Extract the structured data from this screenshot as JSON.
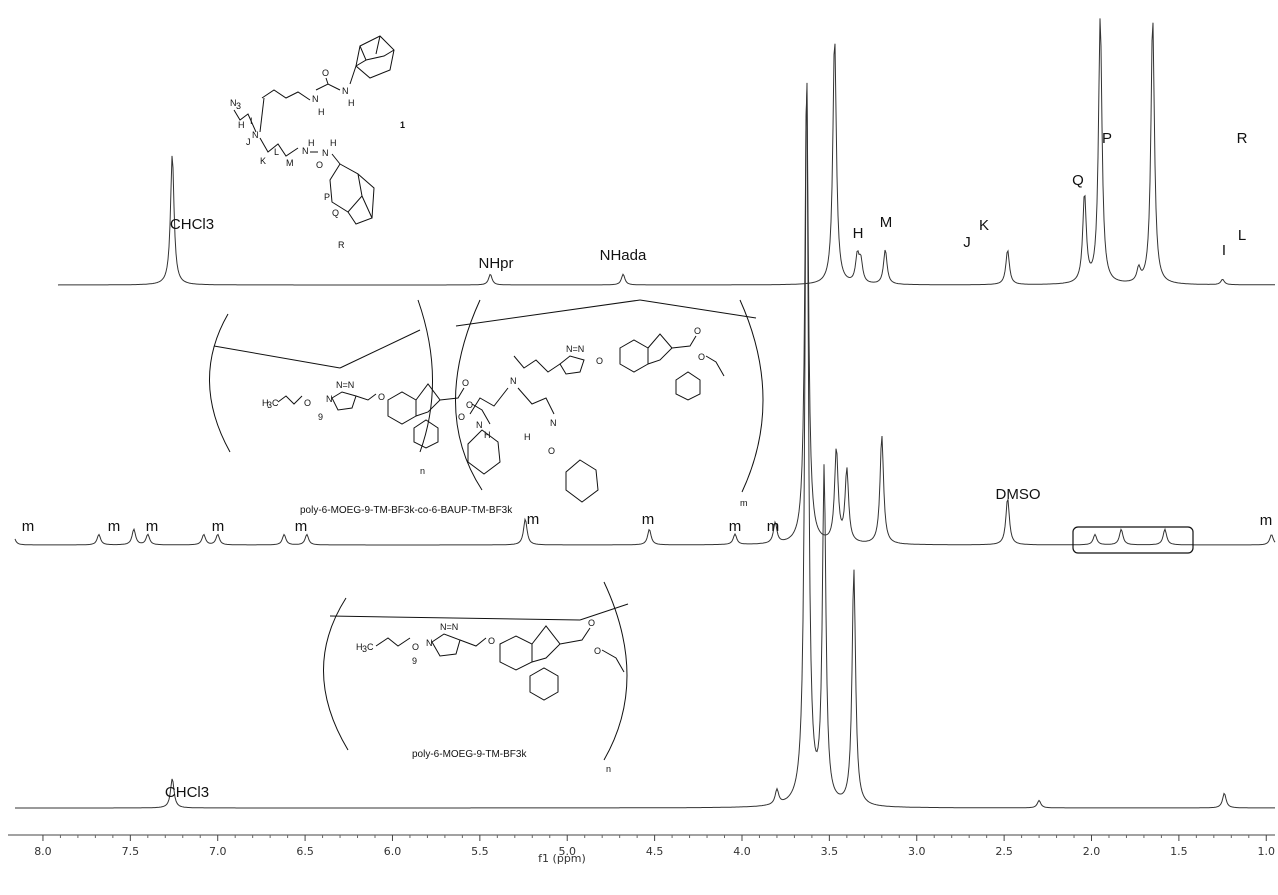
{
  "chart_data": {
    "type": "line",
    "xlabel": "f1 (ppm)",
    "xlim": [
      8.2,
      0.95
    ],
    "x_ticks": [
      "8.0",
      "7.5",
      "7.0",
      "6.5",
      "6.0",
      "5.5",
      "5.0",
      "4.5",
      "4.0",
      "3.5",
      "3.0",
      "2.5",
      "2.0",
      "1.5",
      "1.0"
    ],
    "grid": false,
    "series": [
      {
        "name": "1",
        "peaks": [
          {
            "ppm": 7.26,
            "height": 0.49
          },
          {
            "ppm": 5.44,
            "height": 0.04
          },
          {
            "ppm": 4.68,
            "height": 0.04
          },
          {
            "ppm": 3.47,
            "height": 0.93
          },
          {
            "ppm": 3.34,
            "height": 0.1
          },
          {
            "ppm": 3.32,
            "height": 0.08
          },
          {
            "ppm": 3.18,
            "height": 0.13
          },
          {
            "ppm": 2.48,
            "height": 0.13
          },
          {
            "ppm": 2.04,
            "height": 0.33
          },
          {
            "ppm": 1.95,
            "height": 1.0
          },
          {
            "ppm": 1.73,
            "height": 0.05
          },
          {
            "ppm": 1.65,
            "height": 1.0
          },
          {
            "ppm": 1.25,
            "height": 0.02
          }
        ]
      },
      {
        "name": "poly-6-MOEG-9-TM-BF3k-co-6-BAUP-TM-BF3k",
        "peaks": [
          {
            "ppm": 8.17,
            "height": 0.02
          },
          {
            "ppm": 7.68,
            "height": 0.02
          },
          {
            "ppm": 7.48,
            "height": 0.03
          },
          {
            "ppm": 7.4,
            "height": 0.02
          },
          {
            "ppm": 7.08,
            "height": 0.02
          },
          {
            "ppm": 7.0,
            "height": 0.02
          },
          {
            "ppm": 6.62,
            "height": 0.02
          },
          {
            "ppm": 6.49,
            "height": 0.02
          },
          {
            "ppm": 5.24,
            "height": 0.05
          },
          {
            "ppm": 4.53,
            "height": 0.03
          },
          {
            "ppm": 4.04,
            "height": 0.02
          },
          {
            "ppm": 3.81,
            "height": 0.04
          },
          {
            "ppm": 3.63,
            "height": 0.9
          },
          {
            "ppm": 3.46,
            "height": 0.18
          },
          {
            "ppm": 3.4,
            "height": 0.14
          },
          {
            "ppm": 3.2,
            "height": 0.21
          },
          {
            "ppm": 2.48,
            "height": 0.09
          },
          {
            "ppm": 1.98,
            "height": 0.02
          },
          {
            "ppm": 1.83,
            "height": 0.03
          },
          {
            "ppm": 1.58,
            "height": 0.03
          },
          {
            "ppm": 0.97,
            "height": 0.02
          }
        ]
      },
      {
        "name": "poly-6-MOEG-9-TM-BF3k",
        "peaks": [
          {
            "ppm": 7.26,
            "height": 0.04
          },
          {
            "ppm": 3.8,
            "height": 0.02
          },
          {
            "ppm": 3.63,
            "height": 1.0
          },
          {
            "ppm": 3.53,
            "height": 0.45
          },
          {
            "ppm": 3.36,
            "height": 0.32
          },
          {
            "ppm": 2.3,
            "height": 0.01
          },
          {
            "ppm": 1.24,
            "height": 0.02
          }
        ]
      }
    ],
    "annotations": [
      {
        "text": "CHCl3",
        "ppm": 7.26,
        "trace": 0
      },
      {
        "text": "NHpr",
        "ppm": 5.44,
        "trace": 0
      },
      {
        "text": "NHada",
        "ppm": 4.68,
        "trace": 0
      },
      {
        "text": "H",
        "ppm": 3.34,
        "trace": 0
      },
      {
        "text": "M",
        "ppm": 3.18,
        "trace": 0
      },
      {
        "text": "J",
        "ppm": 2.54,
        "trace": 0
      },
      {
        "text": "K",
        "ppm": 2.46,
        "trace": 0
      },
      {
        "text": "Q",
        "ppm": 2.04,
        "trace": 0
      },
      {
        "text": "P",
        "ppm": 1.91,
        "trace": 0
      },
      {
        "text": "I",
        "ppm": 1.73,
        "trace": 0
      },
      {
        "text": "R",
        "ppm": 1.61,
        "trace": 0
      },
      {
        "text": "L",
        "ppm": 1.61,
        "trace": 0
      },
      {
        "text": "DMSO",
        "ppm": 2.48,
        "trace": 1
      },
      {
        "text": "m",
        "ppm": 8.1,
        "trace": 1
      },
      {
        "text": "CHCl3",
        "ppm": 7.26,
        "trace": 2
      }
    ],
    "labels": {
      "compound_number": "1",
      "copolymer_caption": "poly-6-MOEG-9-TM-BF3k-co-6-BAUP-TM-BF3k",
      "homopolymer_caption": "poly-6-MOEG-9-TM-BF3k",
      "sub_n": "n",
      "sub_m": "m",
      "peg_repeat": "9"
    }
  }
}
